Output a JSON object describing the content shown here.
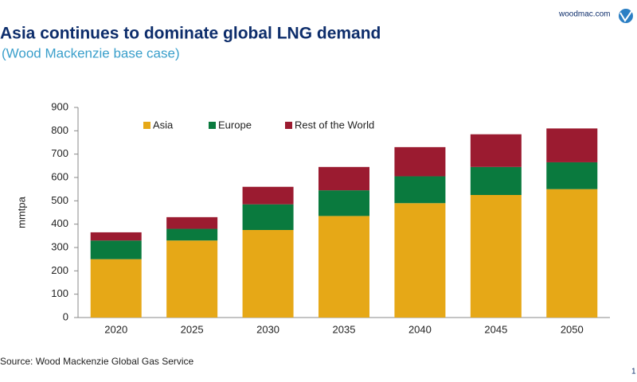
{
  "header": {
    "site": "woodmac.com"
  },
  "footer": {
    "source": "Source: Wood Mackenzie Global Gas Service",
    "page": "1"
  },
  "chart_data": {
    "type": "stacked_bar",
    "title": "Asia continues to dominate global LNG demand",
    "subtitle": "(Wood Mackenzie base case)",
    "y_label": "mmtpa",
    "categories": [
      "2020",
      "2025",
      "2030",
      "2035",
      "2040",
      "2045",
      "2050"
    ],
    "series": [
      {
        "name": "Asia",
        "color": "#e6a817",
        "values": [
          250,
          330,
          375,
          435,
          490,
          525,
          550
        ]
      },
      {
        "name": "Europe",
        "color": "#0a7a3e",
        "values": [
          80,
          50,
          110,
          110,
          115,
          120,
          115
        ]
      },
      {
        "name": "Rest of the World",
        "color": "#9b1b30",
        "values": [
          35,
          50,
          75,
          100,
          125,
          140,
          145
        ]
      }
    ],
    "ylim": [
      0,
      900
    ],
    "yticks": [
      0,
      100,
      200,
      300,
      400,
      500,
      600,
      700,
      800,
      900
    ],
    "grid": false,
    "legend": "top"
  }
}
